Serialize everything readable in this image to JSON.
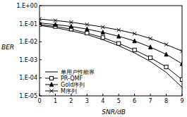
{
  "chart_data": {
    "type": "line",
    "x_label": "SNR/dB",
    "y_label": "BER",
    "log": "y",
    "grid": false,
    "legend": "lower left",
    "x": [
      0,
      1,
      2,
      3,
      4,
      5,
      6,
      7,
      8,
      9
    ],
    "xlim": [
      0,
      9
    ],
    "xticks": [
      0,
      1,
      2,
      3,
      4,
      5,
      6,
      7,
      8,
      9
    ],
    "ylim": [
      1e-05,
      1
    ],
    "yticks": [
      {
        "value": 1e-05,
        "label": "1.E-05"
      },
      {
        "value": 0.0001,
        "label": "1.E-04"
      },
      {
        "value": 0.001,
        "label": "1.E-03"
      },
      {
        "value": 0.01,
        "label": "1.E-02"
      },
      {
        "value": 0.1,
        "label": "1.E-01"
      },
      {
        "value": 1,
        "label": "1.E+00"
      }
    ],
    "series": [
      {
        "name": "单用户性能界",
        "color": "#000000",
        "marker": "none",
        "line_style": "solid",
        "values": [
          0.08,
          0.06,
          0.04,
          0.025,
          0.013,
          0.006,
          0.0024,
          0.0008,
          0.0002,
          3e-05
        ]
      },
      {
        "name": "PR-QMF",
        "color": "#000000",
        "marker": "square",
        "line_style": "solid",
        "values": [
          0.09,
          0.07,
          0.05,
          0.03,
          0.017,
          0.008,
          0.0035,
          0.0013,
          0.0004,
          8e-05
        ]
      },
      {
        "name": "Gold序列",
        "color": "#000000",
        "marker": "triangle",
        "line_style": "solid",
        "values": [
          0.11,
          0.09,
          0.07,
          0.05,
          0.033,
          0.02,
          0.011,
          0.005,
          0.002,
          0.0006
        ]
      },
      {
        "name": "M序列",
        "color": "#000000",
        "marker": "x",
        "line_style": "solid",
        "values": [
          0.18,
          0.15,
          0.12,
          0.09,
          0.065,
          0.045,
          0.028,
          0.015,
          0.007,
          0.003
        ]
      }
    ]
  }
}
